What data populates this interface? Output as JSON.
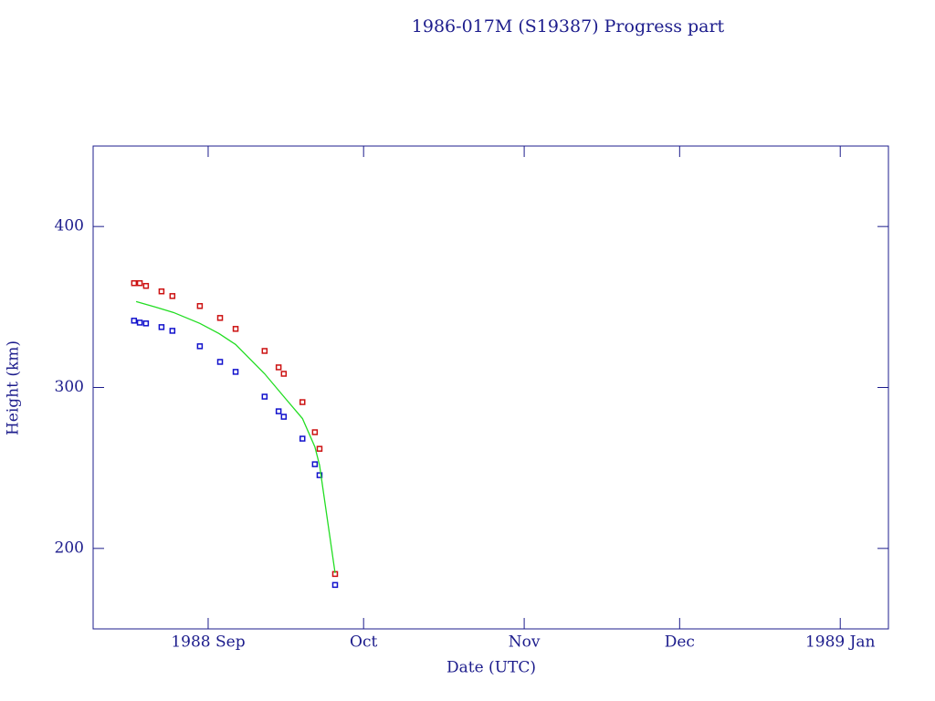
{
  "chart_data": {
    "type": "scatter",
    "title": "1986-017M (S19387) Progress part",
    "x_label": "Date (UTC)",
    "y_label": "Height (km)",
    "xlim": [
      -22.2,
      131.3
    ],
    "ylim": [
      150,
      450
    ],
    "xticks": [
      {
        "value": 0,
        "label": "1988 Sep"
      },
      {
        "value": 30,
        "label": "Oct"
      },
      {
        "value": 61,
        "label": "Nov"
      },
      {
        "value": 91,
        "label": "Dec"
      },
      {
        "value": 122,
        "label": "1989 Jan"
      }
    ],
    "yticks": [
      200,
      300,
      400
    ],
    "axis_color": "#1c1c8c",
    "series": [
      {
        "style": "points",
        "color": "#cc1111",
        "x": [
          -14.3,
          -13.2,
          -12.0,
          -9.0,
          -6.9,
          -1.6,
          2.3,
          5.3,
          10.9,
          13.6,
          14.6,
          18.2,
          20.6,
          21.5,
          24.5
        ],
        "values": [
          364.8,
          364.8,
          363.1,
          359.7,
          356.8,
          350.6,
          343.2,
          336.4,
          322.7,
          312.5,
          308.5,
          290.9,
          272.2,
          261.9,
          184.1
        ]
      },
      {
        "style": "points",
        "color": "#1111cc",
        "x": [
          -14.3,
          -13.2,
          -12.0,
          -9.0,
          -6.9,
          -1.6,
          2.3,
          5.3,
          10.9,
          13.6,
          14.6,
          18.2,
          20.6,
          21.5,
          24.5
        ],
        "values": [
          341.5,
          340.3,
          339.8,
          337.5,
          335.2,
          325.6,
          315.9,
          309.7,
          294.3,
          285.2,
          281.8,
          268.2,
          252.3,
          245.5,
          177.3
        ]
      },
      {
        "style": "line",
        "color": "#22dd22",
        "x": [
          -13.9,
          -10.2,
          -6.7,
          -1.6,
          2.1,
          5.3,
          10.9,
          14.9,
          18.2,
          20.6,
          21.5,
          24.5
        ],
        "values": [
          353.4,
          350.0,
          346.6,
          339.8,
          333.5,
          326.7,
          308.5,
          293.2,
          280.7,
          263.1,
          251.7,
          184.7
        ]
      }
    ]
  }
}
